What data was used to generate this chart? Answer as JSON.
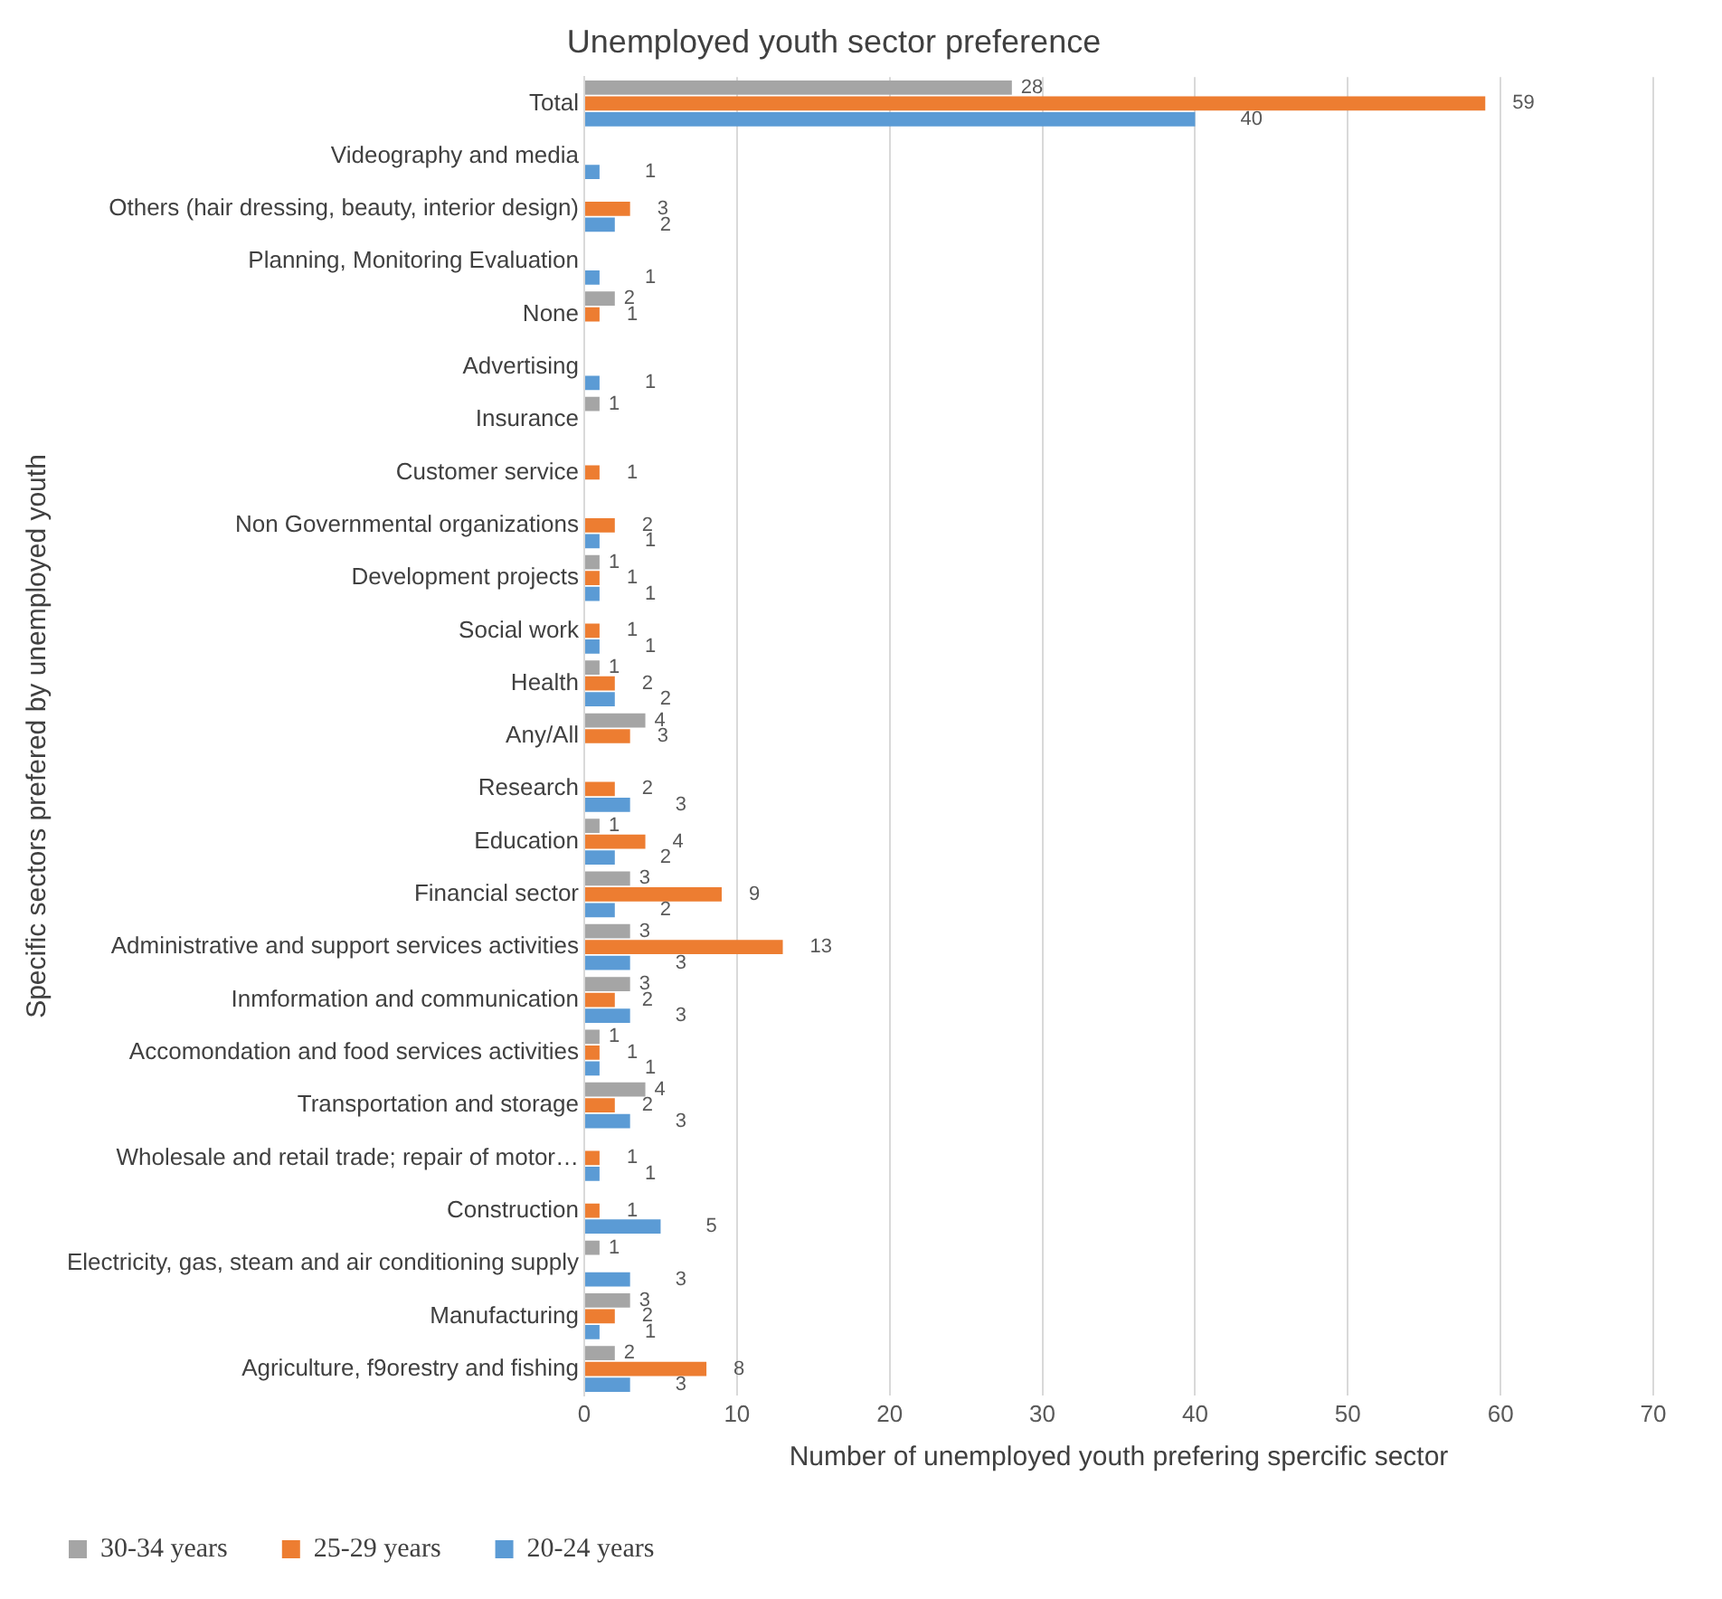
{
  "chart_data": {
    "type": "bar",
    "orientation": "horizontal",
    "title": "Unemployed youth sector preference",
    "xlabel": "Number of unemployed youth prefering spercific sector",
    "ylabel": "Specific sectors prefered by unemployed youth",
    "categories": [
      "Total",
      "Videography and media",
      "Others (hair dressing, beauty, interior design)",
      "Planning, Monitoring Evaluation",
      "None",
      "Advertising",
      "Insurance",
      "Customer service",
      "Non Governmental organizations",
      "Development projects",
      "Social work",
      "Health",
      "Any/All",
      "Research",
      "Education",
      "Financial sector",
      "Administrative and support services activities",
      "Inmformation and communication",
      "Accomondation and food services activities",
      "Transportation and storage",
      "Wholesale and retail trade; repair of motor…",
      "Construction",
      "Electricity, gas, steam and air conditioning supply",
      "Manufacturing",
      "Agriculture, f9orestry and fishing"
    ],
    "series": [
      {
        "name": "30-34 years",
        "color": "#a5a5a5",
        "values": [
          28,
          null,
          null,
          null,
          2,
          null,
          1,
          null,
          null,
          1,
          null,
          1,
          4,
          null,
          1,
          3,
          3,
          3,
          1,
          4,
          null,
          null,
          1,
          3,
          2
        ]
      },
      {
        "name": "25-29 years",
        "color": "#ed7d31",
        "values": [
          59,
          null,
          3,
          null,
          1,
          null,
          null,
          1,
          2,
          1,
          1,
          2,
          3,
          2,
          4,
          9,
          13,
          2,
          1,
          2,
          1,
          1,
          null,
          2,
          8
        ]
      },
      {
        "name": "20-24 years",
        "color": "#5b9bd5",
        "values": [
          40,
          1,
          2,
          1,
          null,
          1,
          null,
          null,
          1,
          1,
          1,
          2,
          null,
          3,
          2,
          2,
          3,
          3,
          1,
          3,
          1,
          5,
          3,
          1,
          3
        ]
      }
    ],
    "xlim": [
      0,
      70
    ],
    "xticks": [
      0,
      10,
      20,
      30,
      40,
      50,
      60,
      70
    ],
    "grid": "x",
    "legend": "bottom left",
    "data_labels": true
  }
}
